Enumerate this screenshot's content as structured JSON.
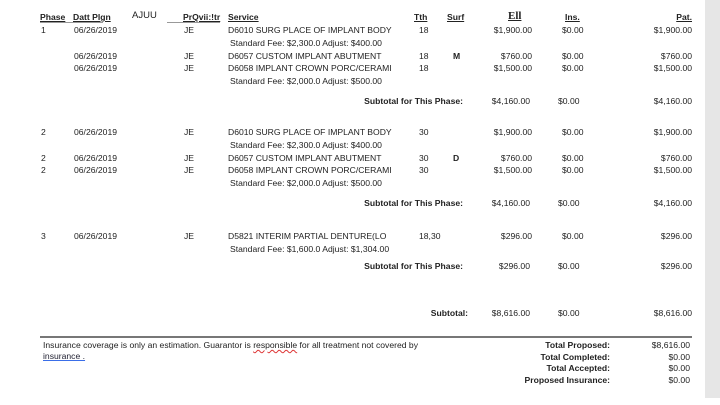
{
  "header": {
    "phase": "Phase",
    "date": "Datt Plgn",
    "extra": "AJUU",
    "provider": "PrQvii:!tr",
    "service": "Service",
    "tooth": "Tth",
    "surf": "Surf",
    "fee": "Ell",
    "ins": "Ins.",
    "pat": "Pat."
  },
  "phases": [
    {
      "rows": [
        {
          "phase": "1",
          "date": "06/26/2019",
          "prov": "JE",
          "service": "D6010 SURG PLACE OF IMPLANT BODY",
          "tooth": "18",
          "surf": "",
          "fee": "$1,900.00",
          "ins": "$0.00",
          "pat": "$1,900.00",
          "note": "Standard Fee: $2,300.0 Adjust: $400.00"
        },
        {
          "phase": "",
          "date": "06/26/2019",
          "prov": "JE",
          "service": "D6057 CUSTOM IMPLANT ABUTMENT",
          "tooth": "18",
          "surf": "M",
          "fee": "$760.00",
          "ins": "$0.00",
          "pat": "$760.00",
          "note": ""
        },
        {
          "phase": "",
          "date": "06/26/2019",
          "prov": "JE",
          "service": "D6058 IMPLANT CROWN PORC/CERAMI",
          "tooth": "18",
          "surf": "",
          "fee": "$1,500.00",
          "ins": "$0.00",
          "pat": "$1,500.00",
          "note": "Standard Fee: $2,000.0 Adjust: $500.00"
        }
      ],
      "subtotal": {
        "label": "Subtotal for This Phase:",
        "fee": "$4,160.00",
        "ins": "$0.00",
        "pat": "$4,160.00"
      }
    },
    {
      "rows": [
        {
          "phase": "2",
          "date": "06/26/2019",
          "prov": "JE",
          "service": "D6010 SURG PLACE OF IMPLANT BODY",
          "tooth": "30",
          "surf": "",
          "fee": "$1,900.00",
          "ins": "$0.00",
          "pat": "$1,900.00",
          "note": "Standard Fee: $2,300.0 Adjust: $400.00"
        },
        {
          "phase": "2",
          "date": "06/26/2019",
          "prov": "JE",
          "service": "D6057 CUSTOM IMPLANT ABUTMENT",
          "tooth": "30",
          "surf": "D",
          "fee": "$760.00",
          "ins": "$0.00",
          "pat": "$760.00",
          "note": ""
        },
        {
          "phase": "2",
          "date": "06/26/2019",
          "prov": "JE",
          "service": "D6058 IMPLANT CROWN PORC/CERAMI",
          "tooth": "30",
          "surf": "",
          "fee": "$1,500.00",
          "ins": "$0.00",
          "pat": "$1,500.00",
          "note": "Standard Fee: $2,000.0 Adjust: $500.00"
        }
      ],
      "subtotal": {
        "label": "Subtotal for This Phase:",
        "fee": "$4,160.00",
        "ins": "$0.00",
        "pat": "$4,160.00"
      }
    },
    {
      "rows": [
        {
          "phase": "3",
          "date": "06/26/2019",
          "prov": "JE",
          "service": "D5821 INTERIM PARTIAL DENTURE(LO",
          "tooth": "18,30",
          "surf": "",
          "fee": "$296.00",
          "ins": "$0.00",
          "pat": "$296.00",
          "note": "Standard Fee: $1,600.0 Adjust: $1,304.00"
        }
      ],
      "subtotal": {
        "label": "Subtotal for This Phase:",
        "fee": "$296.00",
        "ins": "$0.00",
        "pat": "$296.00"
      }
    }
  ],
  "grand_subtotal": {
    "label": "Subtotal:",
    "fee": "$8,616.00",
    "ins": "$0.00",
    "pat": "$8,616.00"
  },
  "footer": {
    "disclaimer_a": "Insurance coverage is only an estimation. Guarantor is ",
    "disclaimer_b": "responsible",
    "disclaimer_c": " for all treatment not covered by",
    "disclaimer_d": "insurance .",
    "totals": [
      {
        "label": "Total Proposed:",
        "value": "$8,616.00"
      },
      {
        "label": "Total Completed:",
        "value": "$0.00"
      },
      {
        "label": "Total Accepted:",
        "value": "$0.00"
      },
      {
        "label": "Proposed Insurance:",
        "value": "$0.00"
      }
    ]
  }
}
